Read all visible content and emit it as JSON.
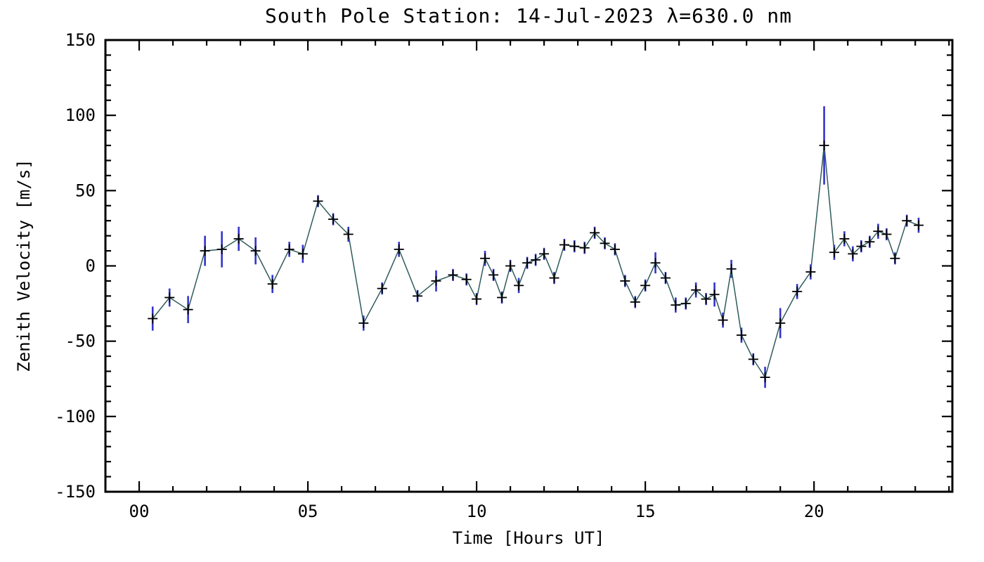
{
  "page": {
    "background": "#ffffff"
  },
  "chart_data": {
    "type": "line",
    "title": "South Pole Station: 14-Jul-2023 λ=630.0 nm",
    "xlabel": "Time [Hours UT]",
    "ylabel": "Zenith Velocity [m/s]",
    "xlim": [
      -1,
      24.1
    ],
    "ylim": [
      -150,
      150
    ],
    "xticks": [
      {
        "v": 0,
        "label": "00"
      },
      {
        "v": 5,
        "label": "05"
      },
      {
        "v": 10,
        "label": "10"
      },
      {
        "v": 15,
        "label": "15"
      },
      {
        "v": 20,
        "label": "20"
      }
    ],
    "x_minor_step": 1,
    "yticks": [
      {
        "v": -150,
        "label": "-150"
      },
      {
        "v": -100,
        "label": "-100"
      },
      {
        "v": -50,
        "label": "-50"
      },
      {
        "v": 0,
        "label": "0"
      },
      {
        "v": 50,
        "label": "50"
      },
      {
        "v": 100,
        "label": "100"
      },
      {
        "v": 150,
        "label": "150"
      }
    ],
    "y_minor_step": 10,
    "grid": false,
    "legend": false,
    "marker": "plus",
    "line_color": "#2f5b5b",
    "marker_color": "#000000",
    "error_color": "#3333cc",
    "axis_color": "#000000",
    "points_format": [
      "time_hours_ut",
      "zenith_velocity_m_s",
      "error_m_s"
    ],
    "points": [
      [
        0.4,
        -35,
        8
      ],
      [
        0.9,
        -21,
        6
      ],
      [
        1.45,
        -29,
        9
      ],
      [
        1.95,
        10,
        10
      ],
      [
        2.45,
        11,
        12
      ],
      [
        2.95,
        18,
        8
      ],
      [
        3.45,
        10,
        9
      ],
      [
        3.95,
        -12,
        6
      ],
      [
        4.45,
        11,
        5
      ],
      [
        4.85,
        8,
        6
      ],
      [
        5.3,
        43,
        4
      ],
      [
        5.75,
        31,
        4
      ],
      [
        6.2,
        21,
        5
      ],
      [
        6.65,
        -38,
        5
      ],
      [
        7.2,
        -15,
        4
      ],
      [
        7.7,
        11,
        5
      ],
      [
        8.25,
        -20,
        4
      ],
      [
        8.8,
        -10,
        7
      ],
      [
        9.3,
        -6,
        4
      ],
      [
        9.7,
        -9,
        4
      ],
      [
        10.0,
        -22,
        4
      ],
      [
        10.25,
        5,
        5
      ],
      [
        10.5,
        -6,
        4
      ],
      [
        10.75,
        -21,
        4
      ],
      [
        11.0,
        0,
        4
      ],
      [
        11.25,
        -13,
        5
      ],
      [
        11.5,
        2,
        4
      ],
      [
        11.75,
        4,
        4
      ],
      [
        12.0,
        8,
        4
      ],
      [
        12.3,
        -8,
        4
      ],
      [
        12.6,
        14,
        4
      ],
      [
        12.9,
        13,
        4
      ],
      [
        13.2,
        12,
        4
      ],
      [
        13.5,
        22,
        4
      ],
      [
        13.8,
        15,
        4
      ],
      [
        14.1,
        11,
        4
      ],
      [
        14.4,
        -10,
        4
      ],
      [
        14.7,
        -24,
        4
      ],
      [
        15.0,
        -13,
        4
      ],
      [
        15.3,
        2,
        7
      ],
      [
        15.6,
        -8,
        4
      ],
      [
        15.9,
        -26,
        5
      ],
      [
        16.2,
        -25,
        4
      ],
      [
        16.5,
        -16,
        5
      ],
      [
        16.8,
        -22,
        4
      ],
      [
        17.05,
        -19,
        8
      ],
      [
        17.3,
        -36,
        5
      ],
      [
        17.55,
        -2,
        6
      ],
      [
        17.85,
        -46,
        5
      ],
      [
        18.2,
        -62,
        4
      ],
      [
        18.55,
        -74,
        7
      ],
      [
        19.0,
        -38,
        10
      ],
      [
        19.5,
        -17,
        5
      ],
      [
        19.9,
        -4,
        5
      ],
      [
        20.3,
        80,
        26
      ],
      [
        20.6,
        9,
        5
      ],
      [
        20.9,
        18,
        5
      ],
      [
        21.15,
        8,
        5
      ],
      [
        21.4,
        13,
        4
      ],
      [
        21.65,
        16,
        4
      ],
      [
        21.9,
        23,
        5
      ],
      [
        22.15,
        21,
        4
      ],
      [
        22.4,
        5,
        4
      ],
      [
        22.75,
        30,
        4
      ],
      [
        23.1,
        27,
        5
      ]
    ]
  }
}
